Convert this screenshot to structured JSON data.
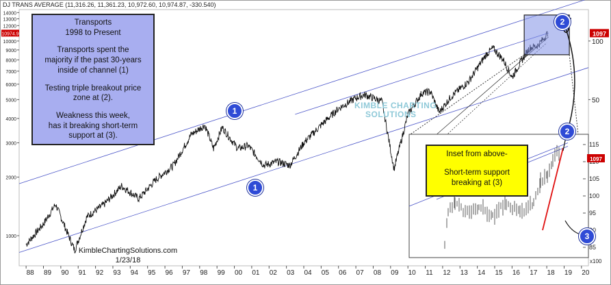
{
  "header": {
    "text": "DJ TRANS AVERAGE (11,316.26, 11,361.23, 10,972.60, 10,974.87, -330.540)"
  },
  "note": {
    "line1": "Transports",
    "line2": "1998 to Present",
    "line3": "Transports spent the",
    "line4": "majority if the past 30-years",
    "line5": "inside of channel (1)",
    "line6": "Testing triple breakout price",
    "line7": "zone at (2).",
    "line8": "Weakness this week,",
    "line9": "has it breaking short-term",
    "line10": "support at (3)."
  },
  "credit": {
    "site": "KimbleChartingSolutions.com",
    "date": "1/23/18"
  },
  "watermark": {
    "line1": "KIMBLE CHARTING",
    "line2": "SOLUTIONS"
  },
  "inset": {
    "note_line1": "Inset from above-",
    "note_line2": "Short-term support",
    "note_line3": "breaking at (3)",
    "price_tag": "1097",
    "multiplier": "x100",
    "y_ticks": [
      "115",
      "110",
      "105",
      "100",
      "95",
      "90",
      "85"
    ]
  },
  "badges": {
    "one": "1",
    "two": "2",
    "three": "3"
  },
  "colors": {
    "note_bg": "#a8aef0",
    "inset_note_bg": "#ffff00",
    "badge": "#2f4bd6",
    "channel": "#4a55c8",
    "support_break": "#e01010",
    "price_tag": "#cc0000"
  },
  "chart_data": {
    "type": "line",
    "title": "DJ TRANS AVERAGE",
    "y_scale": "log",
    "left_axis_ticks": [
      "14000",
      "13000",
      "12000",
      "11000",
      "10000",
      "9000",
      "8000",
      "7000",
      "6000",
      "5000",
      "4000",
      "3000",
      "2000",
      "1000"
    ],
    "right_axis_ticks": [
      "100",
      "50"
    ],
    "price_tag_left": "10974.9",
    "price_tag_right": "1097",
    "x_ticks": [
      "88",
      "89",
      "90",
      "91",
      "92",
      "93",
      "94",
      "95",
      "96",
      "97",
      "98",
      "99",
      "00",
      "01",
      "02",
      "03",
      "04",
      "05",
      "06",
      "07",
      "08",
      "09",
      "10",
      "11",
      "12",
      "13",
      "14",
      "15",
      "16",
      "17",
      "18",
      "19",
      "20"
    ],
    "series": [
      {
        "x": [
          1988.0,
          1989.0,
          1989.7,
          1990.8,
          1991.5,
          1992.5,
          1993.5,
          1994.5,
          1995.5,
          1996.5,
          1997.5,
          1998.3,
          1998.8,
          1999.3,
          2000.2,
          2000.8,
          2001.7,
          2002.5,
          2003.2,
          2004.0,
          2005.0,
          2006.0,
          2007.0,
          2007.5,
          2008.5,
          2009.2,
          2010.0,
          2010.8,
          2011.3,
          2011.8,
          2012.5,
          2013.5,
          2014.5,
          2014.9,
          2015.5,
          2016.0,
          2016.5,
          2017.0,
          2017.5,
          2018.06
        ],
        "values": [
          900,
          1150,
          1450,
          840,
          1250,
          1450,
          1800,
          1550,
          1950,
          2300,
          3300,
          3700,
          2800,
          3600,
          2800,
          2900,
          2300,
          2400,
          2300,
          3000,
          3700,
          4500,
          5100,
          5300,
          4900,
          2200,
          4200,
          5400,
          5500,
          4300,
          5200,
          6200,
          8500,
          9200,
          8000,
          6500,
          7800,
          9200,
          9500,
          10974.87
        ]
      }
    ],
    "annotations": [
      "1",
      "1",
      "1",
      "2",
      "2",
      "3"
    ]
  }
}
